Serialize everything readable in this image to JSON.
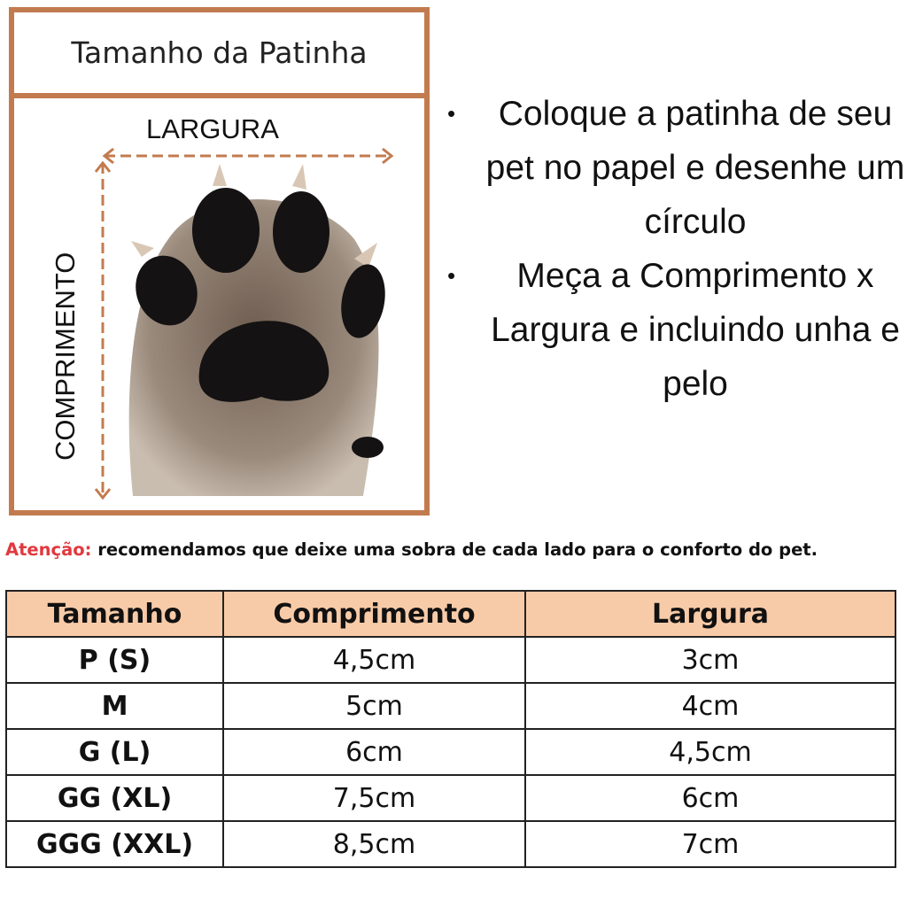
{
  "diagram": {
    "title": "Tamanho da Patinha",
    "width_label": "LARGURA",
    "length_label": "COMPRIMENTO",
    "frame_color": "#c27b4f"
  },
  "instructions": [
    "Coloque a patinha de seu pet no papel e desenhe um círculo",
    "Meça a Comprimento x Largura e incluindo unha e pelo"
  ],
  "notice": {
    "label": "Atenção:",
    "text": " recomendamos que deixe uma sobra de cada lado para o conforto do pet.",
    "label_color": "#e2383f"
  },
  "size_table": {
    "header_color": "#f8cba8",
    "headers": [
      "Tamanho",
      "Comprimento",
      "Largura"
    ],
    "rows": [
      [
        "P (S)",
        "4,5cm",
        "3cm"
      ],
      [
        "M",
        "5cm",
        "4cm"
      ],
      [
        "G (L)",
        "6cm",
        "4,5cm"
      ],
      [
        "GG (XL)",
        "7,5cm",
        "6cm"
      ],
      [
        "GGG (XXL)",
        "8,5cm",
        "7cm"
      ]
    ]
  }
}
